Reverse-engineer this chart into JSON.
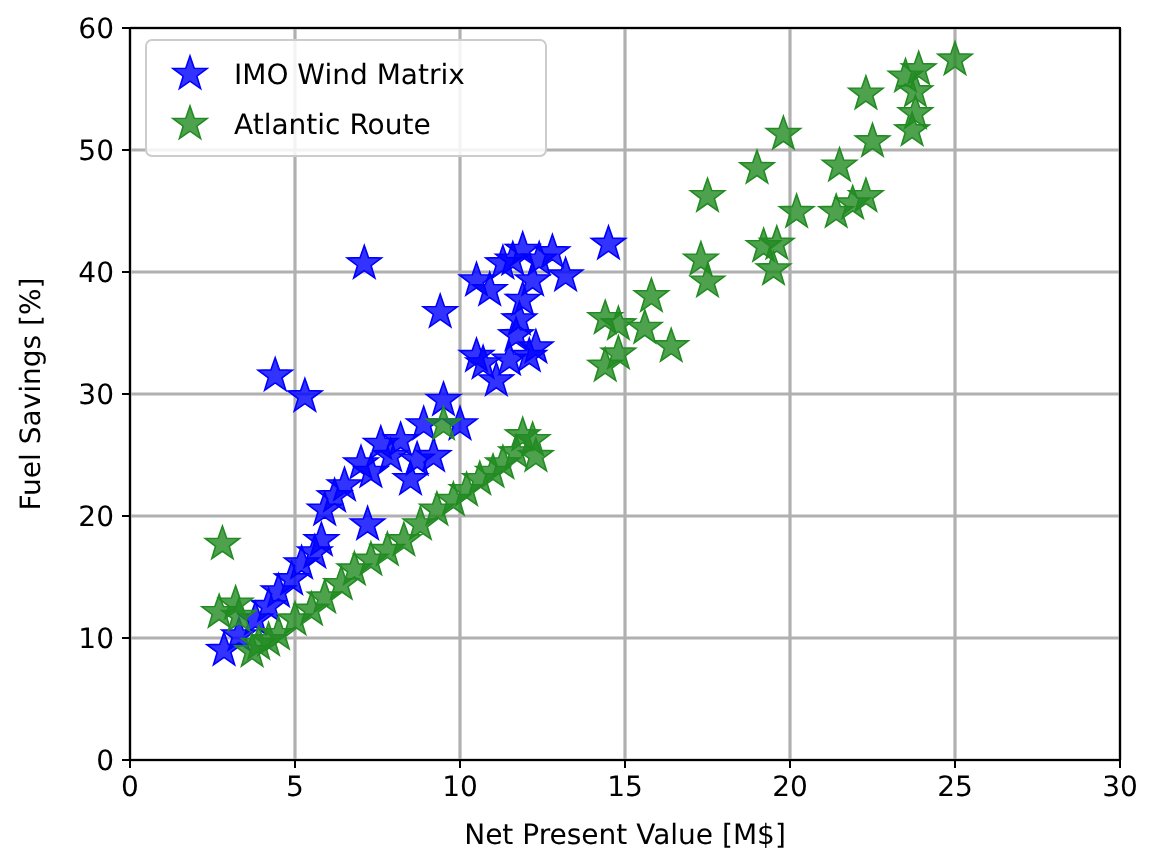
{
  "chart_data": {
    "type": "scatter",
    "xlabel": "Net Present Value [M$]",
    "ylabel": "Fuel Savings [%]",
    "xlim": [
      0,
      30
    ],
    "ylim": [
      0,
      60
    ],
    "xticks": [
      0,
      5,
      10,
      15,
      20,
      25,
      30
    ],
    "yticks": [
      0,
      10,
      20,
      30,
      40,
      50,
      60
    ],
    "grid": true,
    "legend": "top left",
    "marker": "star",
    "series": [
      {
        "name": "IMO Wind Matrix",
        "color": "#0000ff",
        "x": [
          2.85,
          3.3,
          3.8,
          4.2,
          4.5,
          4.9,
          5.2,
          5.6,
          5.8,
          5.9,
          6.2,
          6.5,
          7.0,
          7.3,
          7.2,
          7.6,
          7.9,
          8.2,
          8.5,
          8.7,
          8.9,
          9.2,
          9.4,
          9.5,
          10.0,
          4.4,
          5.3,
          7.1,
          10.5,
          10.7,
          10.5,
          10.9,
          11.1,
          11.5,
          11.7,
          11.8,
          11.9,
          12.1,
          12.3,
          11.3,
          11.6,
          11.9,
          12.2,
          12.4,
          12.8,
          13.2,
          14.5
        ],
        "values": [
          9.0,
          10.2,
          11.5,
          12.6,
          13.8,
          14.8,
          16.1,
          17.0,
          18.0,
          20.5,
          21.6,
          22.5,
          24.3,
          23.6,
          19.3,
          25.9,
          24.9,
          26.2,
          23.0,
          24.6,
          27.5,
          24.9,
          36.7,
          29.5,
          27.5,
          31.5,
          29.8,
          40.7,
          33.1,
          32.5,
          39.3,
          38.5,
          31.1,
          32.8,
          34.8,
          36.1,
          37.7,
          33.1,
          33.8,
          40.7,
          41.0,
          41.8,
          39.3,
          41.0,
          41.6,
          39.7,
          42.3
        ]
      },
      {
        "name": "Atlantic Route",
        "color": "#228b22",
        "x": [
          2.7,
          2.8,
          3.2,
          3.3,
          3.7,
          3.9,
          4.2,
          4.5,
          5.0,
          5.5,
          5.9,
          6.4,
          6.8,
          7.3,
          7.8,
          8.3,
          8.8,
          9.3,
          9.8,
          9.5,
          10.2,
          10.6,
          11.0,
          11.3,
          11.7,
          11.9,
          12.2,
          12.3,
          14.4,
          14.8,
          15.8,
          15.6,
          16.4,
          14.8,
          14.4,
          17.3,
          17.5,
          17.5,
          19.0,
          19.8,
          20.2,
          19.2,
          19.6,
          19.5,
          21.5,
          21.4,
          21.9,
          22.3,
          22.5,
          22.3,
          23.5,
          23.9,
          23.8,
          23.8,
          23.7,
          25.0
        ],
        "values": [
          12.1,
          17.7,
          12.8,
          11.8,
          8.9,
          9.5,
          9.8,
          10.3,
          11.5,
          12.3,
          13.3,
          14.4,
          15.6,
          16.4,
          17.2,
          18.0,
          19.3,
          20.5,
          21.3,
          27.5,
          22.1,
          23.0,
          23.6,
          24.3,
          25.2,
          26.6,
          26.2,
          24.9,
          36.2,
          35.7,
          38.0,
          35.4,
          33.9,
          33.3,
          32.3,
          41.0,
          39.2,
          46.2,
          48.5,
          51.3,
          44.9,
          42.1,
          42.3,
          40.2,
          48.7,
          44.9,
          45.6,
          46.2,
          50.7,
          54.6,
          56.0,
          56.6,
          54.8,
          53.0,
          51.6,
          57.4
        ]
      }
    ]
  }
}
